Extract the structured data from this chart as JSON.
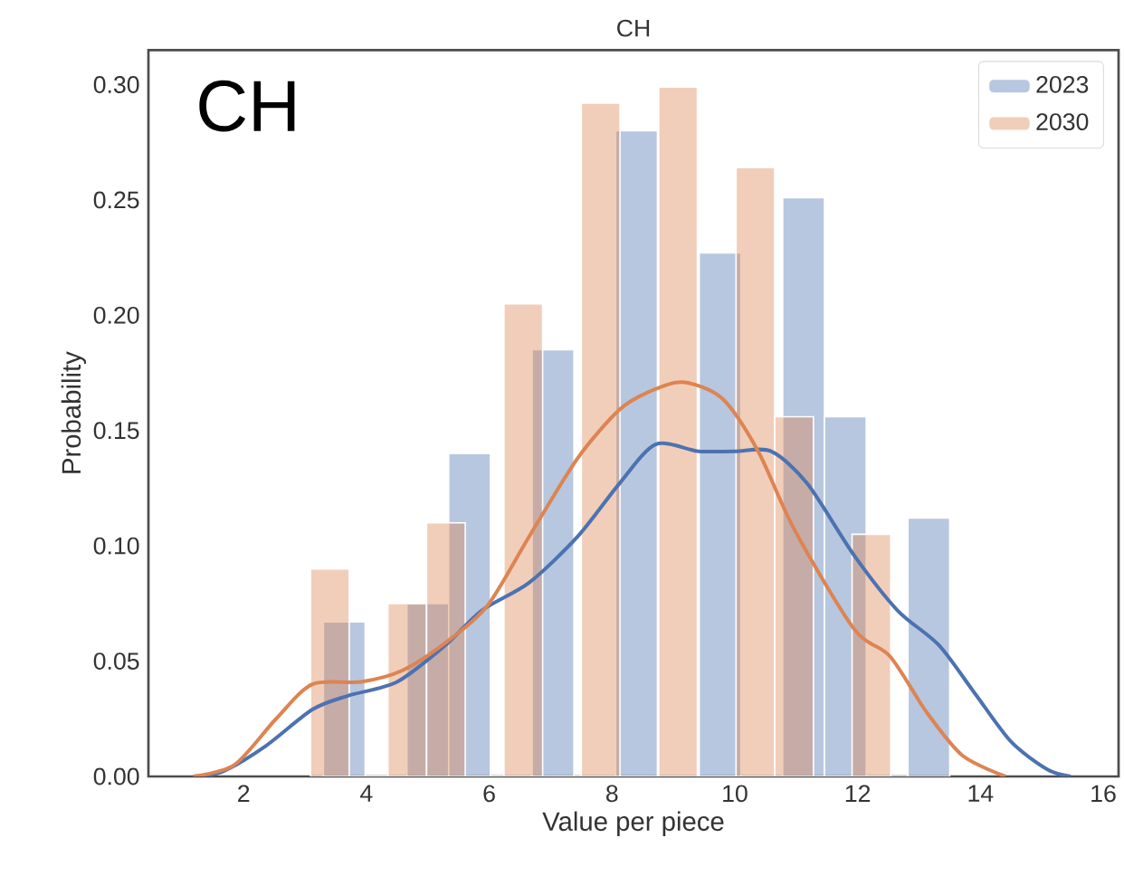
{
  "chart_data": {
    "type": "histogram",
    "title": "CH",
    "xlabel": "Value per piece",
    "ylabel": "Probability",
    "annotations": [
      "CH"
    ],
    "series": [
      {
        "name": "2023",
        "type": "histogram",
        "color": "#4c72b0",
        "bins": [
          3.3,
          3.98,
          4.66,
          5.34,
          6.02,
          6.7,
          7.38,
          8.06,
          8.74,
          9.42,
          10.1,
          10.78,
          11.46,
          12.14,
          12.82,
          13.5
        ],
        "values": [
          0.067,
          0,
          0.075,
          0.14,
          0,
          0.185,
          0,
          0.28,
          0,
          0.227,
          0,
          0.251,
          0.156,
          0,
          0.112
        ]
      },
      {
        "name": "2030",
        "type": "histogram",
        "color": "#dd8452",
        "bins": [
          3.09,
          3.72,
          4.35,
          4.98,
          5.61,
          6.24,
          6.87,
          7.5,
          8.13,
          8.76,
          9.39,
          10.02,
          10.65,
          11.28,
          11.91,
          12.54
        ],
        "values": [
          0.09,
          0,
          0.075,
          0.11,
          0,
          0.205,
          0,
          0.292,
          0,
          0.299,
          0,
          0.264,
          0.156,
          0,
          0.105
        ]
      },
      {
        "type": "line",
        "color": "#4c72b0",
        "x": [
          1.18,
          1.65,
          2.35,
          3.12,
          3.7,
          4.5,
          5.29,
          5.88,
          6.65,
          7.44,
          8.12,
          8.71,
          9.41,
          10.0,
          10.59,
          11.18,
          11.94,
          12.65,
          13.32,
          13.91,
          14.5,
          15.09,
          15.47
        ],
        "values": [
          0,
          0.002,
          0.013,
          0.029,
          0.035,
          0.041,
          0.057,
          0.072,
          0.084,
          0.104,
          0.127,
          0.144,
          0.141,
          0.141,
          0.141,
          0.127,
          0.096,
          0.072,
          0.057,
          0.036,
          0.015,
          0.003,
          0
        ]
      },
      {
        "type": "line",
        "color": "#dd8452",
        "x": [
          1.18,
          1.85,
          2.53,
          3.12,
          3.91,
          4.59,
          5.29,
          5.97,
          6.65,
          7.44,
          8.12,
          8.62,
          9.15,
          9.79,
          10.38,
          10.97,
          11.94,
          12.53,
          13.12,
          13.71,
          14.41
        ],
        "values": [
          0,
          0.005,
          0.025,
          0.04,
          0.041,
          0.046,
          0.058,
          0.074,
          0.104,
          0.138,
          0.159,
          0.167,
          0.171,
          0.164,
          0.141,
          0.107,
          0.064,
          0.052,
          0.028,
          0.009,
          0
        ]
      }
    ],
    "xlim": [
      0.45,
      16.25
    ],
    "ylim": [
      0,
      0.315
    ],
    "xticks": [
      2,
      4,
      6,
      8,
      10,
      12,
      14,
      16
    ],
    "yticks": [
      {
        "value": 0,
        "label": "0.00"
      },
      {
        "value": 0.05,
        "label": "0.05"
      },
      {
        "value": 0.1,
        "label": "0.10"
      },
      {
        "value": 0.15,
        "label": "0.15"
      },
      {
        "value": 0.2,
        "label": "0.20"
      },
      {
        "value": 0.25,
        "label": "0.25"
      },
      {
        "value": 0.3,
        "label": "0.30"
      }
    ],
    "grid": false,
    "legend": "top right"
  }
}
